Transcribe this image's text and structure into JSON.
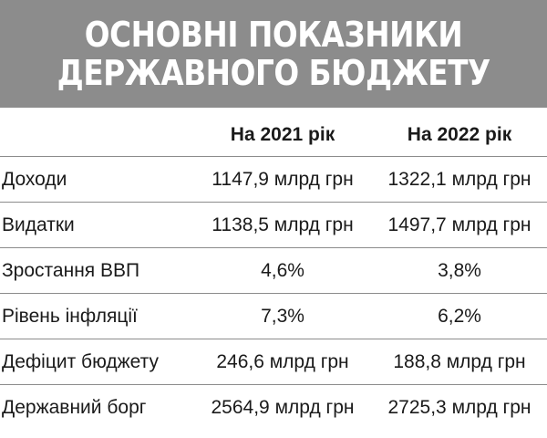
{
  "title": {
    "line1": "ОСНОВНІ ПОКАЗНИКИ",
    "line2": "ДЕРЖАВНОГО БЮДЖЕТУ"
  },
  "table": {
    "headers": [
      "",
      "На 2021 рік",
      "На 2022 рік"
    ],
    "rows": [
      {
        "label": "Доходи",
        "y2021": "1147,9 млрд грн",
        "y2022": "1322,1 млрд грн"
      },
      {
        "label": "Видатки",
        "y2021": "1138,5 млрд грн",
        "y2022": "1497,7 млрд грн"
      },
      {
        "label": "Зростання ВВП",
        "y2021": "4,6%",
        "y2022": "3,8%"
      },
      {
        "label": "Рівень інфляції",
        "y2021": "7,3%",
        "y2022": "6,2%"
      },
      {
        "label": "Дефіцит бюджету",
        "y2021": "246,6 млрд грн",
        "y2022": "188,8 млрд грн"
      },
      {
        "label": "Державний борг",
        "y2021": "2564,9 млрд грн",
        "y2022": "2725,3 млрд грн"
      }
    ]
  },
  "colors": {
    "banner": "#8c8c8c",
    "title_text": "#ffffff",
    "rule": "#8c8c8c"
  }
}
